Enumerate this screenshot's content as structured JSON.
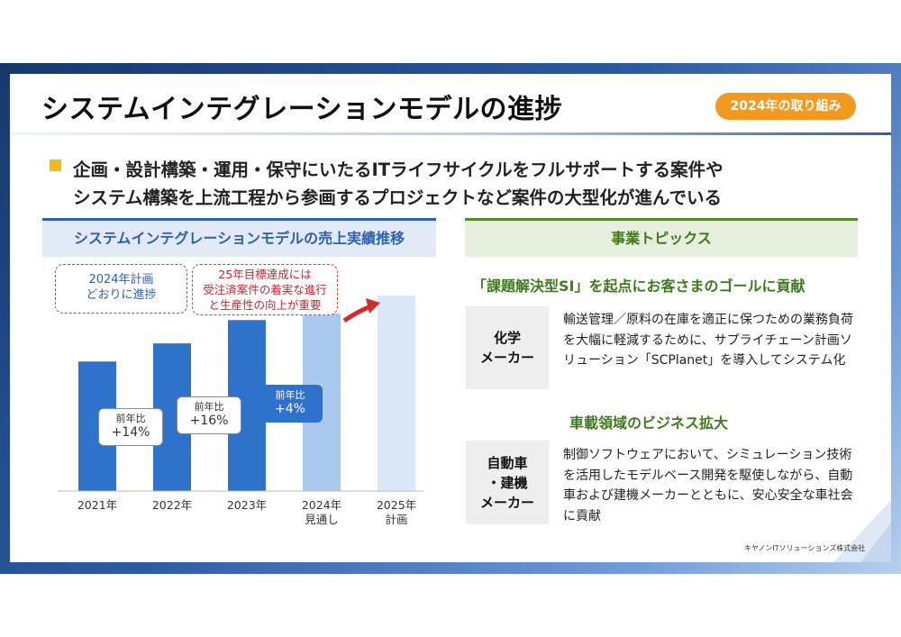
{
  "slide": {
    "title": "システムインテグレーションモデルの進捗",
    "badge": "2024年の取り組み",
    "lead_line1": "企画・設計構築・運用・保守にいたるITライフサイクルをフルサポートする案件や",
    "lead_line2": "システム構築を上流工程から参画するプロジェクトなど案件の大型化が進んでいる",
    "footer": "キヤノンITソリューションズ株式会社"
  },
  "left": {
    "heading": "システムインテグレーションモデルの売上実績推移",
    "callout_blue": [
      "2024年計画",
      "どおりに進捗"
    ],
    "callout_red": [
      "25年目標達成には",
      "受注済案件の着実な進行",
      "と生産性の向上が重要"
    ],
    "yoy_labels": [
      {
        "label": "前年比",
        "value": "+14%"
      },
      {
        "label": "前年比",
        "value": "+16%"
      },
      {
        "label": "前年比",
        "value": "+4%"
      }
    ]
  },
  "chart_data": {
    "type": "bar",
    "categories": [
      "2021年",
      "2022年",
      "2023年",
      "2024年\n見通し",
      "2025年\n計画"
    ],
    "category_lines": [
      [
        "2021年"
      ],
      [
        "2022年"
      ],
      [
        "2023年"
      ],
      [
        "2024年",
        "見通し"
      ],
      [
        "2025年",
        "計画"
      ]
    ],
    "values": [
      100,
      114,
      132,
      137,
      151
    ],
    "ylim": [
      0,
      160
    ],
    "bar_colors": [
      "#2e72cc",
      "#2e72cc",
      "#2e72cc",
      "#a9c8ee",
      "#dbe8f8"
    ],
    "grid": false,
    "annotations": [
      "前年比 +14%",
      "前年比 +16%",
      "前年比 +4%"
    ]
  },
  "right": {
    "heading": "事業トピックス",
    "topic1_title": "「課題解決型SI」を起点にお客さまのゴールに貢献",
    "topic1_category": [
      "化学",
      "メーカー"
    ],
    "topic1_text": "輸送管理／原料の在庫を適正に保つための業務負荷を大幅に軽減するために、サプライチェーン計画ソリューション「SCPlanet」を導入してシステム化",
    "topic2_title": "車載領域のビジネス拡大",
    "topic2_category": [
      "自動車",
      "・建機",
      "メーカー"
    ],
    "topic2_text": "制御ソフトウェアにおいて、シミュレーション技術を活用したモデルベース開発を駆使しながら、自動車および建機メーカーとともに、安心安全な車社会に貢献"
  },
  "colors": {
    "accent_blue": "#2e61ad",
    "accent_green": "#3f7a1f",
    "badge_orange": "#f29a1f",
    "bullet_yellow": "#f6b91c",
    "callout_red": "#c1272d"
  }
}
